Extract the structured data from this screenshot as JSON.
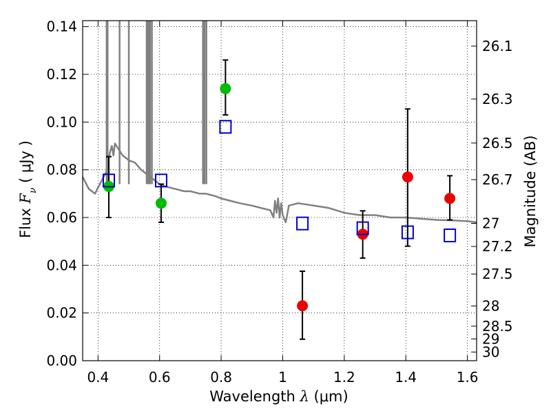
{
  "chart_data": {
    "type": "scatter",
    "xlabel": {
      "prefix": "Wavelength  ",
      "symbol": "λ",
      "unit": " (μm)"
    },
    "ylabel": {
      "prefix": "Flux  ",
      "symbol": "F",
      "subscript": "ν",
      "unit": "  ( μJy )"
    },
    "y2label": "Magnitude (AB)",
    "xlim": [
      0.35,
      1.63
    ],
    "ylim": [
      0.0,
      0.1425
    ],
    "xticks": [
      0.4,
      0.6,
      0.8,
      1.0,
      1.2,
      1.4,
      1.6
    ],
    "xtick_labels": [
      "0.4",
      "0.6",
      "0.8",
      "1",
      "1.2",
      "1.4",
      "1.6"
    ],
    "yticks": [
      0.0,
      0.02,
      0.04,
      0.06,
      0.08,
      0.1,
      0.12,
      0.14
    ],
    "ytick_labels": [
      "0.00",
      "0.02",
      "0.04",
      "0.06",
      "0.08",
      "0.10",
      "0.12",
      "0.14"
    ],
    "y2ticks": [
      26.1,
      26.3,
      26.5,
      26.7,
      27,
      27.2,
      27.5,
      28,
      28.5,
      29,
      30
    ],
    "y2tick_labels": [
      "26.1",
      "26.3",
      "26.5",
      "26.7",
      "27",
      "27.2",
      "27.5",
      "28",
      "28.5",
      "29",
      "30"
    ],
    "grid": true,
    "series": [
      {
        "marker": "circle",
        "color": "#00bb00",
        "points": [
          {
            "x": 0.435,
            "y": 0.073,
            "err_low": 0.06,
            "err_high": 0.0855
          },
          {
            "x": 0.605,
            "y": 0.066,
            "err_low": 0.058,
            "err_high": 0.074
          },
          {
            "x": 0.814,
            "y": 0.114,
            "err_low": 0.103,
            "err_high": 0.126
          }
        ]
      },
      {
        "marker": "circle",
        "color": "#ee0000",
        "points": [
          {
            "x": 1.064,
            "y": 0.023,
            "err_low": 0.009,
            "err_high": 0.0375
          },
          {
            "x": 1.26,
            "y": 0.053,
            "err_low": 0.043,
            "err_high": 0.0628
          },
          {
            "x": 1.406,
            "y": 0.077,
            "err_low": 0.048,
            "err_high": 0.1055
          },
          {
            "x": 1.543,
            "y": 0.068,
            "err_low": 0.059,
            "err_high": 0.0775
          }
        ]
      },
      {
        "marker": "open-square",
        "color": "#0000cc",
        "points": [
          {
            "x": 0.435,
            "y": 0.0755
          },
          {
            "x": 0.605,
            "y": 0.0755
          },
          {
            "x": 0.814,
            "y": 0.098
          },
          {
            "x": 1.064,
            "y": 0.0575
          },
          {
            "x": 1.26,
            "y": 0.0555
          },
          {
            "x": 1.406,
            "y": 0.0538
          },
          {
            "x": 1.543,
            "y": 0.0525
          }
        ]
      },
      {
        "type": "line",
        "color": "#808080",
        "x": [
          0.35,
          0.37,
          0.39,
          0.41,
          0.43,
          0.435,
          0.44,
          0.445,
          0.45,
          0.455,
          0.46,
          0.47,
          0.48,
          0.5,
          0.52,
          0.54,
          0.56,
          0.58,
          0.6,
          0.62,
          0.65,
          0.68,
          0.7,
          0.73,
          0.75,
          0.78,
          0.8,
          0.83,
          0.86,
          0.9,
          0.93,
          0.96,
          0.97,
          0.975,
          0.98,
          0.985,
          0.99,
          0.995,
          1.0,
          1.01,
          1.02,
          1.05,
          1.1,
          1.15,
          1.2,
          1.25,
          1.3,
          1.35,
          1.4,
          1.45,
          1.5,
          1.55,
          1.6,
          1.63
        ],
        "y": [
          0.077,
          0.072,
          0.07,
          0.075,
          0.08,
          0.085,
          0.088,
          0.09,
          0.086,
          0.091,
          0.09,
          0.088,
          0.086,
          0.084,
          0.083,
          0.08,
          0.078,
          0.076,
          0.074,
          0.073,
          0.072,
          0.071,
          0.071,
          0.07,
          0.07,
          0.069,
          0.068,
          0.067,
          0.066,
          0.065,
          0.064,
          0.063,
          0.06,
          0.067,
          0.062,
          0.068,
          0.06,
          0.066,
          0.061,
          0.058,
          0.065,
          0.066,
          0.065,
          0.064,
          0.062,
          0.061,
          0.061,
          0.06,
          0.06,
          0.0595,
          0.059,
          0.0588,
          0.0585,
          0.058
        ]
      },
      {
        "type": "emission-lines",
        "color": "#808080",
        "x": [
          0.428,
          0.431,
          0.47,
          0.5,
          0.558,
          0.561,
          0.565,
          0.569,
          0.575,
          0.741,
          0.746,
          0.752
        ]
      }
    ]
  }
}
